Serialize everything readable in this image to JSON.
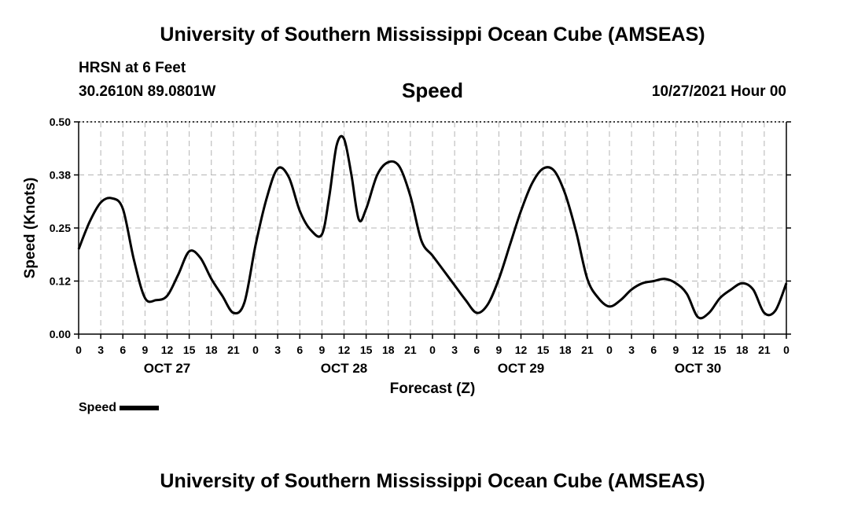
{
  "header": {
    "title_top": "University of Southern Mississippi Ocean Cube (AMSEAS)",
    "title_bottom": "University of Southern Mississippi Ocean Cube (AMSEAS)",
    "station": "HRSN at 6 Feet",
    "coords": "30.2610N  89.0801W",
    "datetime": "10/27/2021 Hour 00"
  },
  "legend": {
    "label": "Speed"
  },
  "chart_data": {
    "type": "line",
    "title": "Speed",
    "xlabel": "Forecast (Z)",
    "ylabel": "Speed (Knots)",
    "ylim": [
      0,
      0.5
    ],
    "yticks": [
      "0.00",
      "0.12",
      "0.25",
      "0.38",
      "0.50"
    ],
    "ytick_values": [
      0,
      0.125,
      0.25,
      0.375,
      0.5
    ],
    "xlim": [
      0,
      96
    ],
    "xtick_labels": [
      "0",
      "3",
      "6",
      "9",
      "12",
      "15",
      "18",
      "21",
      "0",
      "3",
      "6",
      "9",
      "12",
      "15",
      "18",
      "21",
      "0",
      "3",
      "6",
      "9",
      "12",
      "15",
      "18",
      "21",
      "0",
      "3",
      "6",
      "9",
      "12",
      "15",
      "18",
      "21",
      "0"
    ],
    "day_labels": [
      {
        "label": "OCT 27",
        "hour": 12
      },
      {
        "label": "OCT 28",
        "hour": 36
      },
      {
        "label": "OCT 29",
        "hour": 60
      },
      {
        "label": "OCT 30",
        "hour": 84
      }
    ],
    "grid": true,
    "series": [
      {
        "name": "Speed",
        "x": [
          0,
          1.5,
          3,
          4.5,
          6,
          7.5,
          9,
          10.5,
          12,
          13.5,
          15,
          16.5,
          18,
          19.5,
          21,
          22.5,
          24,
          25.5,
          27,
          28.5,
          30,
          31.5,
          33,
          34,
          35,
          36,
          37,
          38,
          39,
          40.5,
          42,
          43.5,
          45,
          46.5,
          48,
          49.5,
          51,
          52.5,
          54,
          55.5,
          57,
          58.5,
          60,
          61.5,
          63,
          64.5,
          66,
          67.5,
          69,
          70.5,
          72,
          73.5,
          75,
          76.5,
          78,
          79.5,
          81,
          82.5,
          84,
          85.5,
          87,
          88.5,
          90,
          91.5,
          93,
          94.5,
          96
        ],
        "values": [
          0.2,
          0.265,
          0.31,
          0.32,
          0.295,
          0.175,
          0.085,
          0.08,
          0.09,
          0.14,
          0.195,
          0.18,
          0.13,
          0.09,
          0.05,
          0.075,
          0.21,
          0.32,
          0.39,
          0.37,
          0.29,
          0.245,
          0.235,
          0.325,
          0.445,
          0.46,
          0.375,
          0.27,
          0.295,
          0.375,
          0.405,
          0.395,
          0.325,
          0.22,
          0.185,
          0.15,
          0.115,
          0.08,
          0.05,
          0.07,
          0.13,
          0.21,
          0.29,
          0.355,
          0.39,
          0.385,
          0.33,
          0.24,
          0.13,
          0.085,
          0.065,
          0.08,
          0.105,
          0.12,
          0.125,
          0.13,
          0.12,
          0.095,
          0.04,
          0.05,
          0.085,
          0.105,
          0.12,
          0.105,
          0.05,
          0.055,
          0.12
        ]
      }
    ]
  }
}
